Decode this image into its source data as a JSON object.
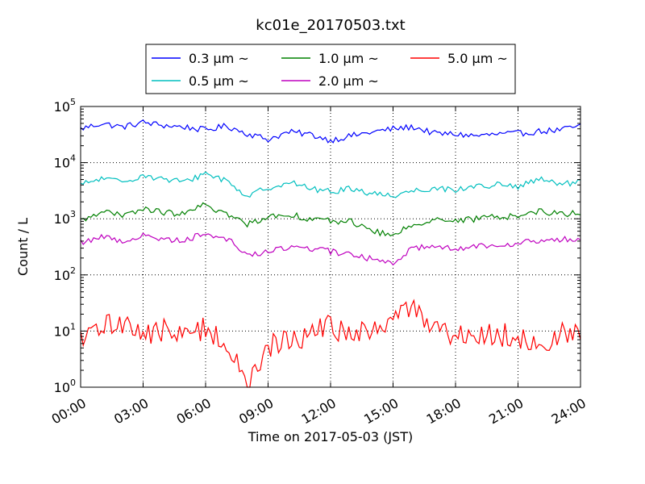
{
  "chart_data": {
    "type": "line",
    "title": "kc01e_20170503.txt",
    "xlabel": "Time on 2017-05-03 (JST)",
    "ylabel": "Count / L",
    "x_tick_labels": [
      "00:00",
      "03:00",
      "06:00",
      "09:00",
      "12:00",
      "15:00",
      "18:00",
      "21:00",
      "24:00"
    ],
    "x_ticks_hours": [
      0,
      3,
      6,
      9,
      12,
      15,
      18,
      21,
      24
    ],
    "xlim_hours": [
      0,
      24
    ],
    "y_scale": "log",
    "ylim": [
      1,
      100000
    ],
    "y_tick_labels": [
      {
        "base": "10",
        "exp": "0"
      },
      {
        "base": "10",
        "exp": "1"
      },
      {
        "base": "10",
        "exp": "2"
      },
      {
        "base": "10",
        "exp": "3"
      },
      {
        "base": "10",
        "exp": "4"
      },
      {
        "base": "10",
        "exp": "5"
      }
    ],
    "grid": true,
    "legend_placement": "top, above plot, 3 columns",
    "series": [
      {
        "name": "0.3 μm ~",
        "color": "#0000ff",
        "x": [
          0,
          1,
          2,
          3,
          4,
          5,
          6,
          7,
          8,
          9,
          10,
          11,
          12,
          13,
          14,
          15,
          16,
          17,
          18,
          19,
          20,
          21,
          22,
          23,
          24
        ],
        "y": [
          40000,
          50000,
          43000,
          52000,
          46000,
          43000,
          38000,
          45000,
          33000,
          26000,
          35000,
          32000,
          25000,
          30000,
          35000,
          40000,
          43000,
          33000,
          32000,
          30000,
          32000,
          33000,
          36000,
          38000,
          45000
        ]
      },
      {
        "name": "0.5 μm ~",
        "color": "#00bfbf",
        "x": [
          0,
          1,
          2,
          3,
          4,
          5,
          6,
          7,
          8,
          9,
          10,
          11,
          12,
          13,
          14,
          15,
          16,
          17,
          18,
          19,
          20,
          21,
          22,
          23,
          24
        ],
        "y": [
          4000,
          5200,
          4500,
          6000,
          5000,
          4500,
          6500,
          4800,
          2500,
          3600,
          4500,
          3500,
          3000,
          3500,
          2800,
          2600,
          3200,
          3500,
          3300,
          3800,
          4000,
          3700,
          5000,
          4200,
          4400
        ]
      },
      {
        "name": "1.0 μm ~",
        "color": "#008000",
        "x": [
          0,
          1,
          2,
          3,
          4,
          5,
          6,
          7,
          8,
          9,
          10,
          11,
          12,
          13,
          14,
          15,
          16,
          17,
          18,
          19,
          20,
          21,
          22,
          23,
          24
        ],
        "y": [
          900,
          1400,
          1100,
          1500,
          1300,
          1200,
          1800,
          1200,
          800,
          1100,
          1200,
          1000,
          900,
          900,
          600,
          500,
          800,
          1000,
          900,
          1000,
          1100,
          1100,
          1400,
          1200,
          1300
        ]
      },
      {
        "name": "2.0 μm ~",
        "color": "#bf00bf",
        "x": [
          0,
          1,
          2,
          3,
          4,
          5,
          6,
          7,
          8,
          9,
          10,
          11,
          12,
          13,
          14,
          15,
          16,
          17,
          18,
          19,
          20,
          21,
          22,
          23,
          24
        ],
        "y": [
          380,
          480,
          400,
          500,
          430,
          420,
          550,
          450,
          230,
          250,
          320,
          300,
          260,
          230,
          190,
          170,
          300,
          350,
          280,
          330,
          350,
          370,
          400,
          420,
          450
        ]
      },
      {
        "name": "5.0 μm ~",
        "color": "#ff0000",
        "x": [
          0,
          1,
          2,
          3,
          4,
          5,
          6,
          7,
          8,
          9,
          10,
          11,
          12,
          13,
          14,
          15,
          16,
          17,
          18,
          19,
          20,
          21,
          22,
          23,
          24
        ],
        "y": [
          6,
          12,
          15,
          9,
          10,
          8,
          12,
          6,
          1,
          5,
          7,
          9,
          12,
          8,
          10,
          18,
          25,
          12,
          9,
          8,
          9,
          8,
          5,
          9,
          8
        ]
      }
    ]
  }
}
